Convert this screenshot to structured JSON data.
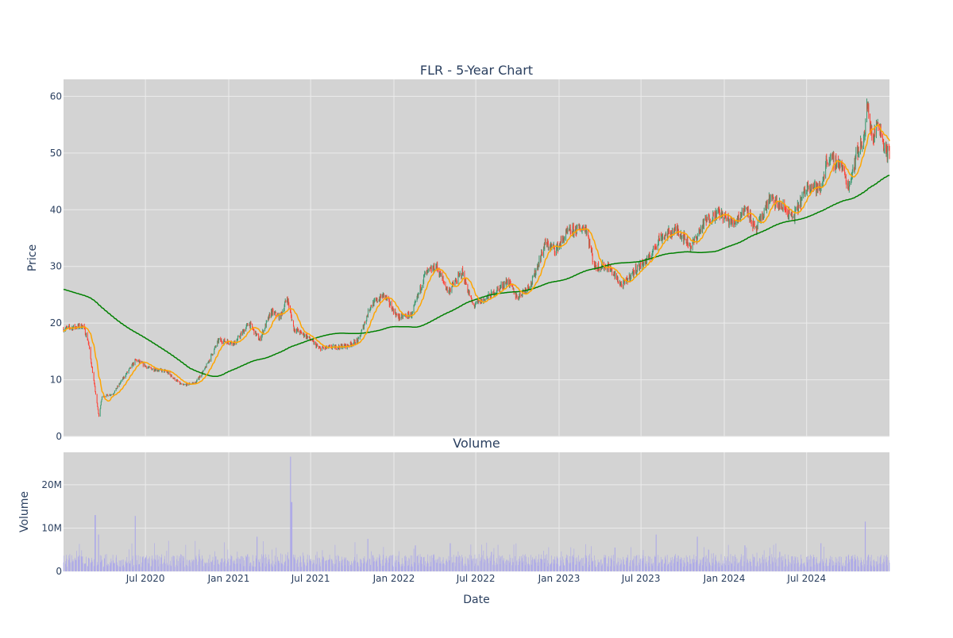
{
  "chart_data": [
    {
      "type": "candlestick",
      "title": "FLR - 5-Year Chart",
      "ylabel": "Price",
      "xlabel": "",
      "ylim": [
        0,
        63
      ],
      "yticks": [
        0,
        10,
        20,
        30,
        40,
        50,
        60
      ],
      "x_range": [
        "2020-01-02",
        "2024-12-31"
      ],
      "xticks": [
        "2020-07-01",
        "2021-01-01",
        "2021-07-01",
        "2022-01-01",
        "2022-07-01",
        "2023-01-01",
        "2023-07-01",
        "2024-01-01",
        "2024-07-01"
      ],
      "grid": true,
      "legend": "none",
      "colors": {
        "up": "#3d9970",
        "down": "#ff4136",
        "ma_short": "orange",
        "ma_long": "green",
        "plot_bg": "#d3d3d3",
        "grid": "#ebebeb"
      },
      "anchor_closes": [
        [
          "2020-01-02",
          19.0
        ],
        [
          "2020-02-14",
          19.5
        ],
        [
          "2020-02-25",
          17.0
        ],
        [
          "2020-03-05",
          12.0
        ],
        [
          "2020-03-20",
          3.5
        ],
        [
          "2020-03-27",
          7.0
        ],
        [
          "2020-04-20",
          7.5
        ],
        [
          "2020-05-15",
          10.5
        ],
        [
          "2020-06-10",
          13.5
        ],
        [
          "2020-07-10",
          12.0
        ],
        [
          "2020-08-15",
          11.5
        ],
        [
          "2020-09-20",
          9.0
        ],
        [
          "2020-10-20",
          9.5
        ],
        [
          "2020-11-10",
          12.0
        ],
        [
          "2020-12-10",
          17.0
        ],
        [
          "2021-01-15",
          16.5
        ],
        [
          "2021-02-15",
          20.0
        ],
        [
          "2021-03-10",
          17.0
        ],
        [
          "2021-04-05",
          22.0
        ],
        [
          "2021-04-25",
          21.0
        ],
        [
          "2021-05-10",
          24.5
        ],
        [
          "2021-05-25",
          19.0
        ],
        [
          "2021-06-25",
          17.5
        ],
        [
          "2021-07-20",
          15.5
        ],
        [
          "2021-09-20",
          16.0
        ],
        [
          "2021-10-15",
          17.0
        ],
        [
          "2021-11-10",
          23.0
        ],
        [
          "2021-12-10",
          25.0
        ],
        [
          "2022-01-10",
          21.0
        ],
        [
          "2022-02-10",
          21.5
        ],
        [
          "2022-03-10",
          28.5
        ],
        [
          "2022-04-05",
          30.0
        ],
        [
          "2022-05-01",
          25.5
        ],
        [
          "2022-06-01",
          29.0
        ],
        [
          "2022-06-25",
          23.0
        ],
        [
          "2022-08-05",
          25.0
        ],
        [
          "2022-09-10",
          27.5
        ],
        [
          "2022-09-30",
          24.5
        ],
        [
          "2022-11-01",
          27.0
        ],
        [
          "2022-12-01",
          34.0
        ],
        [
          "2022-12-25",
          33.0
        ],
        [
          "2023-01-20",
          36.0
        ],
        [
          "2023-03-01",
          37.0
        ],
        [
          "2023-03-20",
          30.0
        ],
        [
          "2023-04-20",
          30.0
        ],
        [
          "2023-05-20",
          26.5
        ],
        [
          "2023-06-20",
          29.5
        ],
        [
          "2023-07-20",
          31.5
        ],
        [
          "2023-08-10",
          35.0
        ],
        [
          "2023-09-20",
          36.5
        ],
        [
          "2023-10-20",
          33.5
        ],
        [
          "2023-11-20",
          38.0
        ],
        [
          "2023-12-20",
          39.5
        ],
        [
          "2024-01-20",
          37.5
        ],
        [
          "2024-02-20",
          40.5
        ],
        [
          "2024-03-10",
          36.0
        ],
        [
          "2024-04-10",
          42.0
        ],
        [
          "2024-05-15",
          40.0
        ],
        [
          "2024-06-01",
          38.5
        ],
        [
          "2024-07-05",
          44.5
        ],
        [
          "2024-08-01",
          43.5
        ],
        [
          "2024-08-15",
          49.0
        ],
        [
          "2024-09-15",
          48.0
        ],
        [
          "2024-10-01",
          44.0
        ],
        [
          "2024-10-20",
          50.0
        ],
        [
          "2024-11-06",
          53.0
        ],
        [
          "2024-11-12",
          58.5
        ],
        [
          "2024-11-25",
          52.0
        ],
        [
          "2024-12-05",
          56.0
        ],
        [
          "2024-12-20",
          51.0
        ],
        [
          "2024-12-31",
          49.5
        ]
      ]
    },
    {
      "type": "bar",
      "title": "Volume",
      "ylabel": "Volume",
      "xlabel": "Date",
      "ylim": [
        0,
        27500000
      ],
      "yticks": [
        0,
        10000000,
        20000000
      ],
      "ytick_labels": [
        "0",
        "10M",
        "20M"
      ],
      "xtick_labels": [
        "Jul 2020",
        "Jan 2021",
        "Jul 2021",
        "Jan 2022",
        "Jul 2022",
        "Jan 2023",
        "Jul 2023",
        "Jan 2024",
        "Jul 2024"
      ],
      "grid": true,
      "colors": {
        "bar": "#ada9e8",
        "plot_bg": "#d3d3d3"
      },
      "typical_volume": 2500000,
      "spikes": [
        [
          "2020-03-12",
          13000000
        ],
        [
          "2020-03-20",
          8500000
        ],
        [
          "2020-06-08",
          12800000
        ],
        [
          "2021-05-18",
          26500000
        ],
        [
          "2021-05-20",
          16000000
        ],
        [
          "2021-03-05",
          8000000
        ],
        [
          "2021-11-05",
          7500000
        ],
        [
          "2022-02-18",
          6000000
        ],
        [
          "2022-05-06",
          6500000
        ],
        [
          "2022-08-05",
          4500000
        ],
        [
          "2023-05-05",
          5500000
        ],
        [
          "2023-08-04",
          8500000
        ],
        [
          "2023-11-03",
          8000000
        ],
        [
          "2024-02-16",
          6000000
        ],
        [
          "2024-05-03",
          4500000
        ],
        [
          "2024-08-02",
          6500000
        ],
        [
          "2024-11-08",
          11500000
        ]
      ]
    }
  ]
}
